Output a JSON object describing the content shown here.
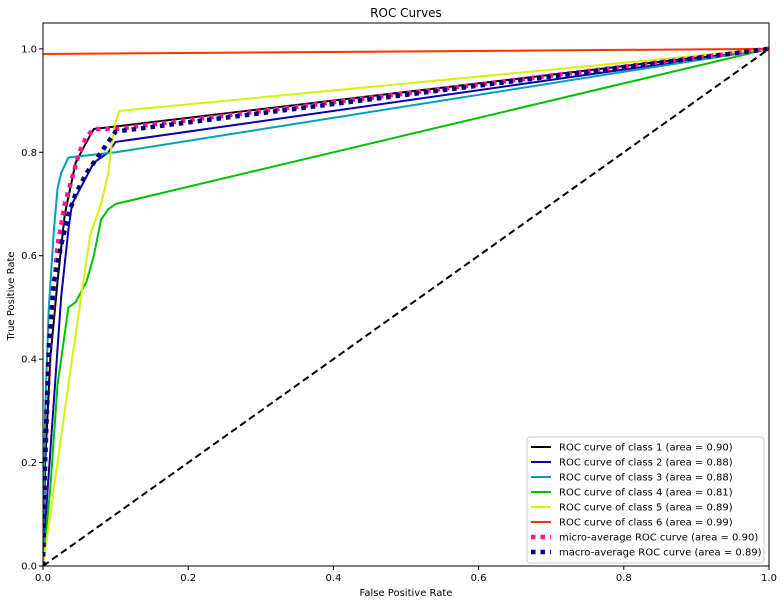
{
  "chart_data": {
    "type": "line",
    "title": "ROC Curves",
    "xlabel": "False Positive Rate",
    "ylabel": "True Positive Rate",
    "xlim": [
      0.0,
      1.0
    ],
    "ylim": [
      0.0,
      1.05
    ],
    "x_ticks": [
      "0.0",
      "0.2",
      "0.4",
      "0.6",
      "0.8",
      "1.0"
    ],
    "y_ticks": [
      "0.0",
      "0.2",
      "0.4",
      "0.6",
      "0.8",
      "1.0"
    ],
    "x_tick_values": [
      0.0,
      0.2,
      0.4,
      0.6,
      0.8,
      1.0
    ],
    "y_tick_values": [
      0.0,
      0.2,
      0.4,
      0.6,
      0.8,
      1.0
    ],
    "grid": false,
    "legend_position": "lower-right",
    "series": [
      {
        "name": "ROC curve of class 1 (area = 0.90)",
        "color": "#000000",
        "style": "solid",
        "x": [
          0.0,
          0.003,
          0.01,
          0.02,
          0.03,
          0.045,
          0.06,
          0.07,
          1.0
        ],
        "y": [
          0.0,
          0.2,
          0.4,
          0.55,
          0.68,
          0.78,
          0.82,
          0.845,
          1.0
        ]
      },
      {
        "name": "ROC curve of class 2 (area = 0.88)",
        "color": "#0a00a8",
        "style": "solid",
        "x": [
          0.0,
          0.005,
          0.015,
          0.025,
          0.035,
          0.04,
          0.055,
          0.07,
          0.09,
          0.1,
          1.0
        ],
        "y": [
          0.0,
          0.12,
          0.32,
          0.52,
          0.65,
          0.7,
          0.74,
          0.78,
          0.8,
          0.82,
          1.0
        ]
      },
      {
        "name": "ROC curve of class 3 (area = 0.88)",
        "color": "#00a0b4",
        "style": "solid",
        "x": [
          0.0,
          0.003,
          0.008,
          0.015,
          0.02,
          0.025,
          0.035,
          0.1,
          1.0
        ],
        "y": [
          0.0,
          0.3,
          0.5,
          0.65,
          0.73,
          0.76,
          0.79,
          0.8,
          1.0
        ]
      },
      {
        "name": "ROC curve of class 4 (area = 0.81)",
        "color": "#00c000",
        "style": "solid",
        "x": [
          0.0,
          0.01,
          0.02,
          0.035,
          0.045,
          0.06,
          0.07,
          0.08,
          0.09,
          0.1,
          1.0
        ],
        "y": [
          0.0,
          0.15,
          0.35,
          0.5,
          0.51,
          0.55,
          0.6,
          0.67,
          0.69,
          0.7,
          1.0
        ]
      },
      {
        "name": "ROC curve of class 5 (area = 0.89)",
        "color": "#ccff33",
        "stroke": "#d9f00a",
        "style": "solid",
        "x": [
          0.0,
          0.02,
          0.04,
          0.065,
          0.08,
          0.09,
          0.095,
          0.1,
          0.105,
          1.0
        ],
        "y": [
          0.0,
          0.2,
          0.4,
          0.64,
          0.7,
          0.76,
          0.82,
          0.86,
          0.88,
          1.0
        ]
      },
      {
        "name": "ROC curve of class 6 (area = 0.99)",
        "color": "#ff3300",
        "style": "solid",
        "x": [
          0.0,
          1.0
        ],
        "y": [
          0.99,
          1.0
        ]
      },
      {
        "name": "micro-average ROC curve (area = 0.90)",
        "color": "#ff1493",
        "style": "dotted",
        "x": [
          0.0,
          0.003,
          0.01,
          0.02,
          0.03,
          0.04,
          0.05,
          0.06,
          0.07,
          0.1,
          1.0
        ],
        "y": [
          0.0,
          0.2,
          0.45,
          0.62,
          0.7,
          0.75,
          0.8,
          0.83,
          0.845,
          0.845,
          1.0
        ]
      },
      {
        "name": "macro-average ROC curve (area = 0.89)",
        "color": "#000080",
        "style": "dotted",
        "x": [
          0.0,
          0.003,
          0.008,
          0.015,
          0.025,
          0.035,
          0.045,
          0.06,
          0.075,
          0.09,
          0.1,
          1.0
        ],
        "y": [
          0.0,
          0.22,
          0.42,
          0.55,
          0.62,
          0.68,
          0.72,
          0.76,
          0.79,
          0.82,
          0.84,
          1.0
        ]
      },
      {
        "name": "",
        "color": "#000000",
        "style": "dashed",
        "in_legend": false,
        "x": [
          0.0,
          1.0
        ],
        "y": [
          0.0,
          1.0
        ]
      }
    ]
  }
}
